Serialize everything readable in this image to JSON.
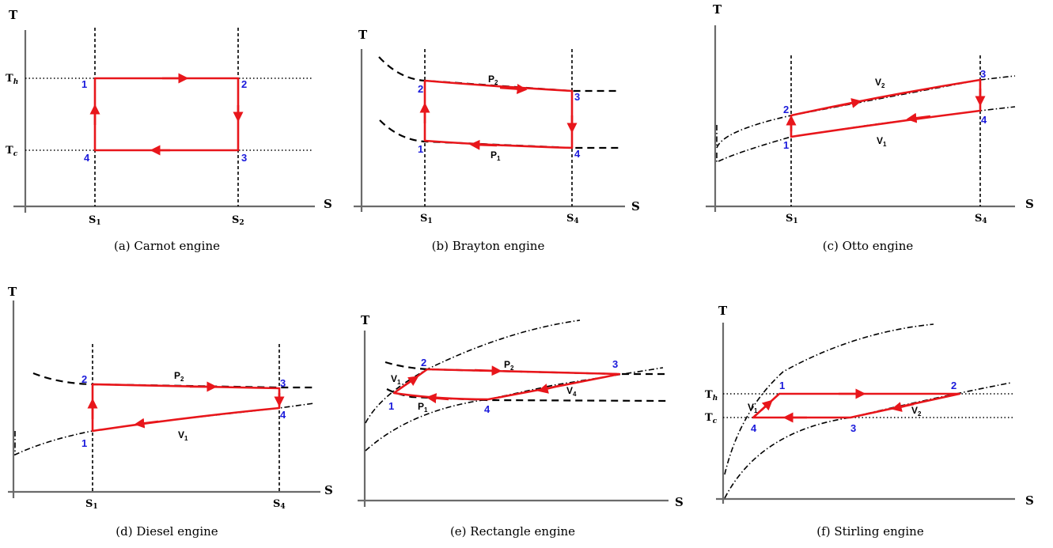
{
  "figure": {
    "axis_x_label": "S",
    "axis_y_label": "T",
    "panels": [
      {
        "id": "a",
        "caption": "(a) Carnot engine",
        "entropy_ticks": [
          {
            "base": "S",
            "sub": "1"
          },
          {
            "base": "S",
            "sub": "2"
          }
        ],
        "temperature_ticks": [
          {
            "base": "T",
            "sub": "h"
          },
          {
            "base": "T",
            "sub": "c"
          }
        ],
        "state_labels": [
          "1",
          "2",
          "3",
          "4"
        ],
        "curve_labels": []
      },
      {
        "id": "b",
        "caption": "(b) Brayton engine",
        "entropy_ticks": [
          {
            "base": "S",
            "sub": "1"
          },
          {
            "base": "S",
            "sub": "4"
          }
        ],
        "temperature_ticks": [],
        "state_labels": [
          "1",
          "2",
          "3",
          "4"
        ],
        "curve_labels": [
          {
            "base": "P",
            "sub": "2"
          },
          {
            "base": "P",
            "sub": "1"
          }
        ]
      },
      {
        "id": "c",
        "caption": "(c) Otto engine",
        "entropy_ticks": [
          {
            "base": "S",
            "sub": "1"
          },
          {
            "base": "S",
            "sub": "4"
          }
        ],
        "temperature_ticks": [],
        "state_labels": [
          "1",
          "2",
          "3",
          "4"
        ],
        "curve_labels": [
          {
            "base": "V",
            "sub": "2"
          },
          {
            "base": "V",
            "sub": "1"
          }
        ]
      },
      {
        "id": "d",
        "caption": "(d) Diesel engine",
        "entropy_ticks": [
          {
            "base": "S",
            "sub": "1"
          },
          {
            "base": "S",
            "sub": "4"
          }
        ],
        "temperature_ticks": [],
        "state_labels": [
          "1",
          "2",
          "3",
          "4"
        ],
        "curve_labels": [
          {
            "base": "P",
            "sub": "2"
          },
          {
            "base": "V",
            "sub": "1"
          }
        ]
      },
      {
        "id": "e",
        "caption": "(e) Rectangle engine",
        "entropy_ticks": [],
        "temperature_ticks": [],
        "state_labels": [
          "1",
          "2",
          "3",
          "4"
        ],
        "curve_labels": [
          {
            "base": "P",
            "sub": "2"
          },
          {
            "base": "V",
            "sub": "1"
          },
          {
            "base": "P",
            "sub": "1"
          },
          {
            "base": "V",
            "sub": "4"
          }
        ]
      },
      {
        "id": "f",
        "caption": "(f) Stirling engine",
        "entropy_ticks": [],
        "temperature_ticks": [
          {
            "base": "T",
            "sub": "h"
          },
          {
            "base": "T",
            "sub": "c"
          }
        ],
        "state_labels": [
          "1",
          "2",
          "3",
          "4"
        ],
        "curve_labels": [
          {
            "base": "V",
            "sub": "1"
          },
          {
            "base": "V",
            "sub": "2"
          }
        ]
      }
    ],
    "colors": {
      "cycle": "#e8161b",
      "state_label": "#1a1adb",
      "axis": "#6b6b6b",
      "guide": "#000000"
    }
  }
}
